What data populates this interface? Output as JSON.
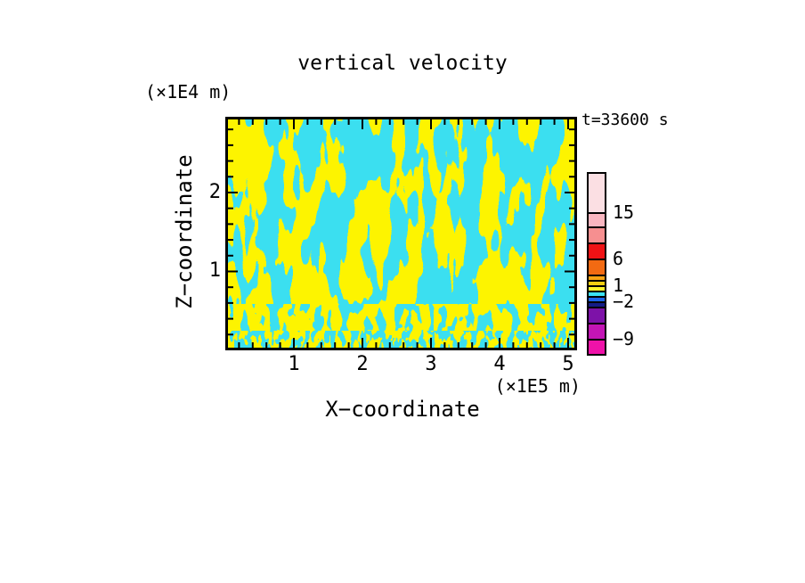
{
  "chart_data": {
    "type": "heatmap",
    "title": "vertical velocity",
    "time_annotation": "t=33600 s",
    "xlabel": "X−coordinate",
    "ylabel": "Z−coordinate",
    "x_units": "(×1E5 m)",
    "y_units": "(×1E4 m)",
    "xlim": [
      0,
      5.13
    ],
    "ylim": [
      0,
      2.96
    ],
    "x_major_ticks": [
      1,
      2,
      3,
      4,
      5
    ],
    "y_major_ticks": [
      1,
      2
    ],
    "x_minor_step": 0.2,
    "y_minor_step": 0.2,
    "grid": false,
    "legend_position": "right-colorbar",
    "field_colors": {
      "cyan_band": "#3BDFF0",
      "yellow_band": "#FDF400"
    },
    "field_note": "two-tone turbulent field: vertical cyan/yellow streaks, grain becomes finer toward the bottom of the domain",
    "colorbar": {
      "tick_labels": [
        "15",
        "6",
        "1",
        "−2",
        "−9"
      ],
      "segments": [
        {
          "color": "#FBDFE3",
          "height": 43,
          "label_below": "15"
        },
        {
          "color": "#F9B6C0",
          "height": 16
        },
        {
          "color": "#F68F90",
          "height": 18
        },
        {
          "color": "#EF1215",
          "height": 18,
          "label_below": "6"
        },
        {
          "color": "#F26A12",
          "height": 18
        },
        {
          "color": "#F8A313",
          "height": 6
        },
        {
          "color": "#F2CE11",
          "height": 6,
          "label_below": "1"
        },
        {
          "color": "#FCF32B",
          "height": 6
        },
        {
          "color": "#3BE2F2",
          "height": 6
        },
        {
          "color": "#1C64E8",
          "height": 6,
          "label_below": "−2"
        },
        {
          "color": "#141C86",
          "height": 6
        },
        {
          "color": "#7D12A8",
          "height": 18
        },
        {
          "color": "#C315B5",
          "height": 18,
          "label_below": "−9"
        },
        {
          "color": "#EF12A9",
          "height": 17
        }
      ]
    }
  }
}
